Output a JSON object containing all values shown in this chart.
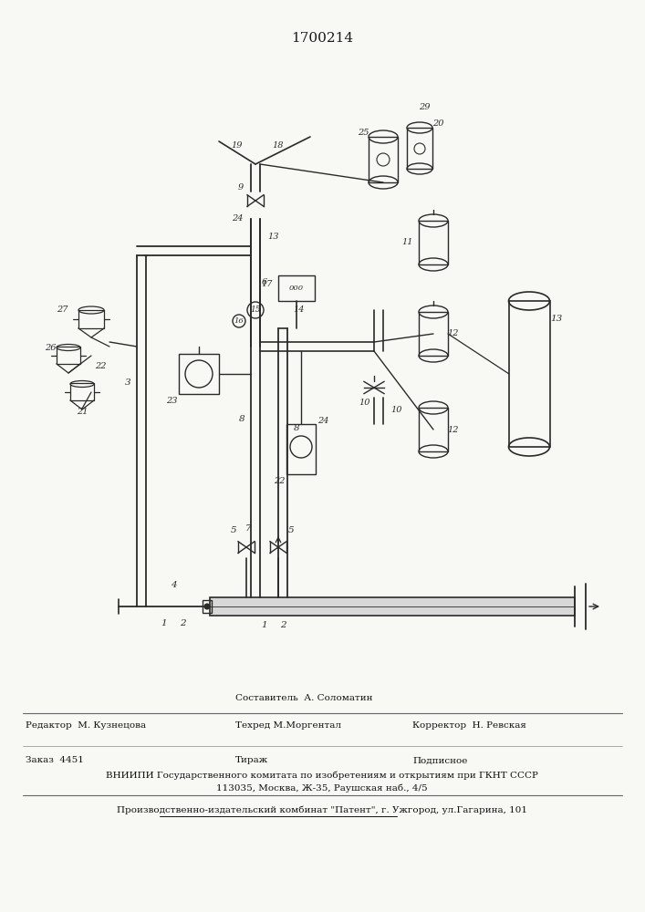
{
  "title": "1700214",
  "bg_color": "#f8f8f5",
  "line_color": "#2a2a2a",
  "footer": {
    "sestavitel": "Составитель  А. Соломатин",
    "redaktor": "Редактор  М. Кузнецова",
    "tehred": "Техред М.Моргентал",
    "korrektor": "Корректор  Н. Ревская",
    "zakaz": "Заказ  4451",
    "tirazh": "Тираж",
    "podpisnoe": "Подписное",
    "vnipi": "ВНИИПИ Государственного комитата по изобретениям и открытиям при ГКНТ СССР",
    "addr": "113035, Москва, Ж-35, Раушская наб., 4/5",
    "patent": "Производственно-издательский комбинат \"Патент\", г. Ужгород, ул.Гагарина, 101"
  }
}
